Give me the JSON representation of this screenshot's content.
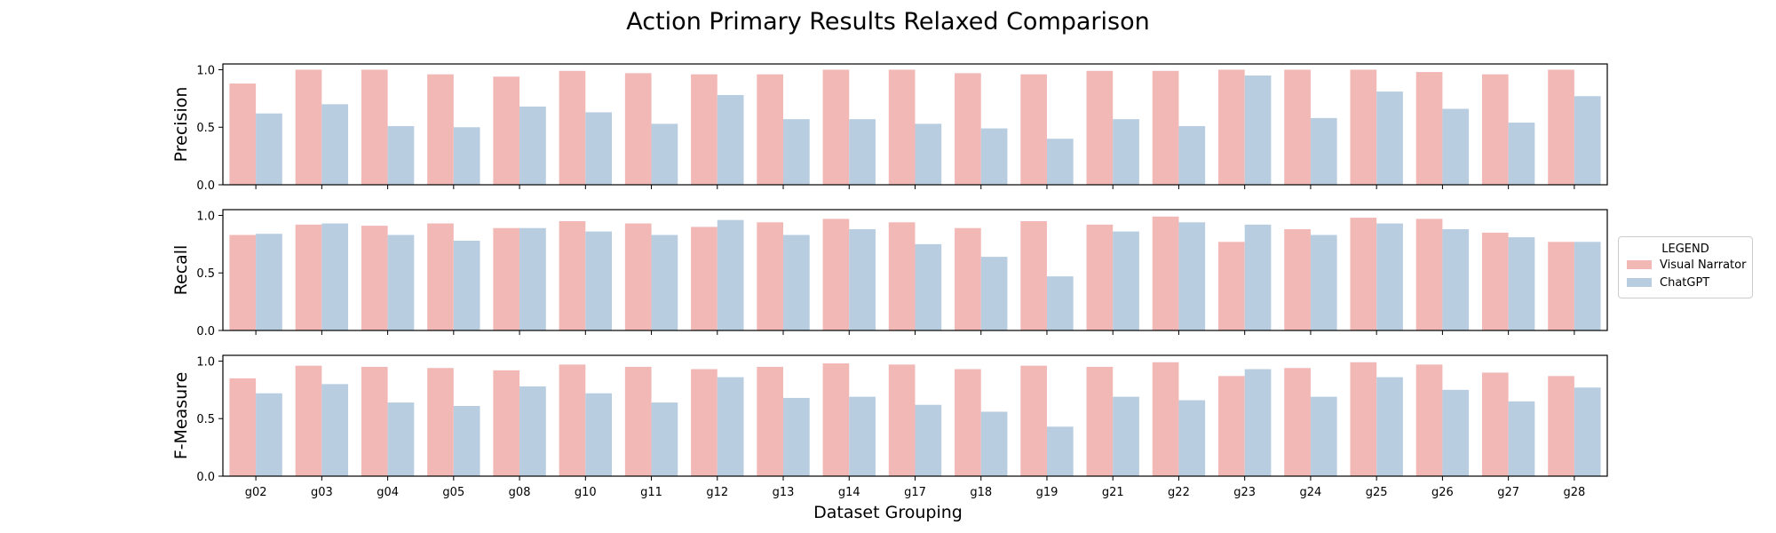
{
  "colors": {
    "visual_narrator": "#f2b8b6",
    "chatgpt": "#b8cde0",
    "axis": "#000000"
  },
  "chart_data": {
    "type": "bar",
    "title": "Action Primary Results Relaxed Comparison",
    "xlabel": "Dataset Grouping",
    "categories": [
      "g02",
      "g03",
      "g04",
      "g05",
      "g08",
      "g10",
      "g11",
      "g12",
      "g13",
      "g14",
      "g17",
      "g18",
      "g19",
      "g21",
      "g22",
      "g23",
      "g24",
      "g25",
      "g26",
      "g27",
      "g28"
    ],
    "legend": {
      "title": "LEGEND",
      "placement": "right",
      "entries": [
        "Visual Narrator",
        "ChatGPT"
      ]
    },
    "panels": [
      {
        "ylabel": "Precision",
        "ylim": [
          0,
          1.05
        ],
        "yticks": [
          "0.0",
          "0.5",
          "1.0"
        ],
        "series": [
          {
            "name": "Visual Narrator",
            "values": [
              0.88,
              1.0,
              1.0,
              0.96,
              0.94,
              0.99,
              0.97,
              0.96,
              0.96,
              1.0,
              1.0,
              0.97,
              0.96,
              0.99,
              0.99,
              1.0,
              1.0,
              1.0,
              0.98,
              0.96,
              1.0
            ]
          },
          {
            "name": "ChatGPT",
            "values": [
              0.62,
              0.7,
              0.51,
              0.5,
              0.68,
              0.63,
              0.53,
              0.78,
              0.57,
              0.57,
              0.53,
              0.49,
              0.4,
              0.57,
              0.51,
              0.95,
              0.58,
              0.81,
              0.66,
              0.54,
              0.77
            ]
          }
        ]
      },
      {
        "ylabel": "Recall",
        "ylim": [
          0,
          1.05
        ],
        "yticks": [
          "0.0",
          "0.5",
          "1.0"
        ],
        "series": [
          {
            "name": "Visual Narrator",
            "values": [
              0.83,
              0.92,
              0.91,
              0.93,
              0.89,
              0.95,
              0.93,
              0.9,
              0.94,
              0.97,
              0.94,
              0.89,
              0.95,
              0.92,
              0.99,
              0.77,
              0.88,
              0.98,
              0.97,
              0.85,
              0.77
            ]
          },
          {
            "name": "ChatGPT",
            "values": [
              0.84,
              0.93,
              0.83,
              0.78,
              0.89,
              0.86,
              0.83,
              0.96,
              0.83,
              0.88,
              0.75,
              0.64,
              0.47,
              0.86,
              0.94,
              0.92,
              0.83,
              0.93,
              0.88,
              0.81,
              0.77
            ]
          }
        ]
      },
      {
        "ylabel": "F-Measure",
        "ylim": [
          0,
          1.05
        ],
        "yticks": [
          "0.0",
          "0.5",
          "1.0"
        ],
        "series": [
          {
            "name": "Visual Narrator",
            "values": [
              0.85,
              0.96,
              0.95,
              0.94,
              0.92,
              0.97,
              0.95,
              0.93,
              0.95,
              0.98,
              0.97,
              0.93,
              0.96,
              0.95,
              0.99,
              0.87,
              0.94,
              0.99,
              0.97,
              0.9,
              0.87
            ]
          },
          {
            "name": "ChatGPT",
            "values": [
              0.72,
              0.8,
              0.64,
              0.61,
              0.78,
              0.72,
              0.64,
              0.86,
              0.68,
              0.69,
              0.62,
              0.56,
              0.43,
              0.69,
              0.66,
              0.93,
              0.69,
              0.86,
              0.75,
              0.65,
              0.77
            ]
          }
        ]
      }
    ]
  }
}
